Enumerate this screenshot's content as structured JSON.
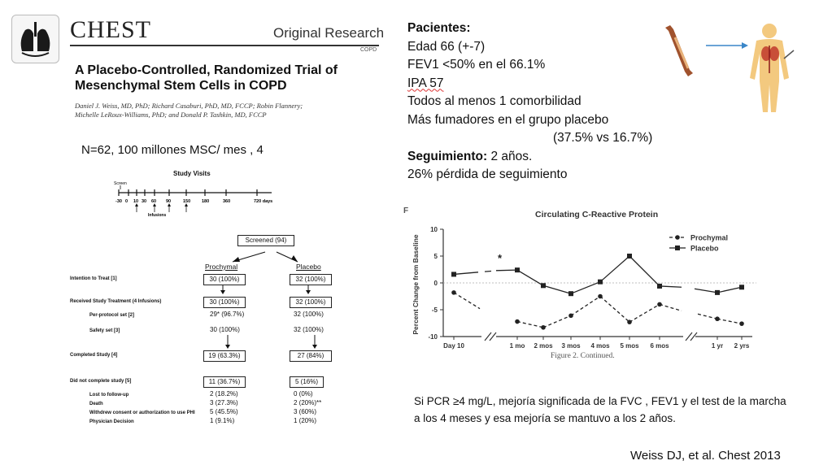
{
  "journal": {
    "name": "CHEST",
    "section": "Original Research",
    "topic": "COPD",
    "title_line1": "A Placebo-Controlled, Randomized Trial of",
    "title_line2": "Mesenchymal Stem Cells in COPD",
    "authors_line1": "Daniel J. Weiss, MD, PhD; Richard Casaburi, PhD, MD, FCCP; Robin Flannery;",
    "authors_line2": "Michelle LeRoux-Williams, PhD; and Donald P. Tashkin, MD, FCCP"
  },
  "summary": {
    "n_line": "N=62,  100 millones MSC/ mes , 4"
  },
  "study_visits": {
    "title": "Study Visits",
    "screen_label": "Screen",
    "infusions_label": "Infusions",
    "ticks": [
      "-30",
      "0",
      "10",
      "30",
      "60",
      "90",
      "150",
      "180",
      "360",
      "720 days"
    ]
  },
  "flow": {
    "screened": "Screened (94)",
    "arm_left": "Prochymal",
    "arm_right": "Placebo",
    "rows": [
      {
        "label": "Intention to Treat [1]",
        "left": "30 (100%)",
        "right": "32 (100%)",
        "boxed": true
      },
      {
        "label": "Received Study Treatment (4 Infusions)",
        "left": "30 (100%)",
        "right": "32 (100%)",
        "boxed": true
      },
      {
        "label": "Per-protocol set [2]",
        "left": "29* (96.7%)",
        "right": "32 (100%)",
        "boxed": false
      },
      {
        "label": "Safety set [3]",
        "left": "30 (100%)",
        "right": "32 (100%)",
        "boxed": false
      },
      {
        "label": "Completed Study [4]",
        "left": "19 (63.3%)",
        "right": "27 (84%)",
        "boxed": true
      },
      {
        "label": "Did not complete study [5]",
        "left": "11 (36.7%)",
        "right": "5 (16%)",
        "boxed": true
      },
      {
        "label": "Lost to follow-up",
        "left": "2 (18.2%)",
        "right": "0 (0%)",
        "boxed": false
      },
      {
        "label": "Death",
        "left": "3 (27.3%)",
        "right": "2 (20%)**",
        "boxed": false
      },
      {
        "label": "Withdrew consent or authorization to use PHI",
        "left": "5 (45.5%)",
        "right": "3 (60%)",
        "boxed": false
      },
      {
        "label": "Physician Decision",
        "left": "1   (9.1%)",
        "right": "1 (20%)",
        "boxed": false
      }
    ]
  },
  "patients": {
    "heading": "Pacientes:",
    "lines": [
      "Edad  66 (+-7)",
      "FEV1 <50% en el 66.1%",
      "IPA 57",
      "Todos al menos 1 comorbilidad",
      "Más fumadores en el grupo placebo",
      "(37.5% vs 16.7%)"
    ],
    "followup_label": "Seguimiento:",
    "followup_value": "2 años.",
    "loss_line": "26% pérdida de seguimiento"
  },
  "chart_data": {
    "type": "line",
    "panel": "F",
    "title": "Circulating C-Reactive Protein",
    "ylabel": "Percent Change from  Baseline",
    "xlabel": "",
    "categories": [
      "Day 10",
      "1 mo",
      "2 mos",
      "3 mos",
      "4 mos",
      "5 mos",
      "6 mos",
      "1 yr",
      "2 yrs"
    ],
    "ylim": [
      -10,
      10
    ],
    "yticks": [
      10,
      5,
      0,
      -5,
      -10
    ],
    "series": [
      {
        "name": "Prochymal",
        "marker": "circle",
        "style": "dashed",
        "values": [
          -1.8,
          -7.2,
          -8.3,
          -6.1,
          -2.5,
          -7.3,
          -4.0,
          -6.7,
          -7.6
        ]
      },
      {
        "name": "Placebo",
        "marker": "square",
        "style": "solid",
        "values": [
          1.6,
          2.4,
          -0.5,
          -2.0,
          0.2,
          5.0,
          -0.6,
          -1.8,
          -0.8
        ]
      }
    ],
    "annotation": "*",
    "caption": "Figure 2. Continued.",
    "legend_position": "top-right"
  },
  "conclusion": {
    "line1": "Si PCR ≥4 mg/L, mejoría significada de la FVC , FEV1 y el test de la marcha",
    "line2": "a los 4 meses  y esa mejoría se mantuvo a los 2 años."
  },
  "citation": "Weiss DJ, et al. Chest 2013",
  "colors": {
    "body_figure": "#f3c97f",
    "arrow": "#3a86c8",
    "bone": "#a0522d",
    "chart_line": "#222222"
  }
}
